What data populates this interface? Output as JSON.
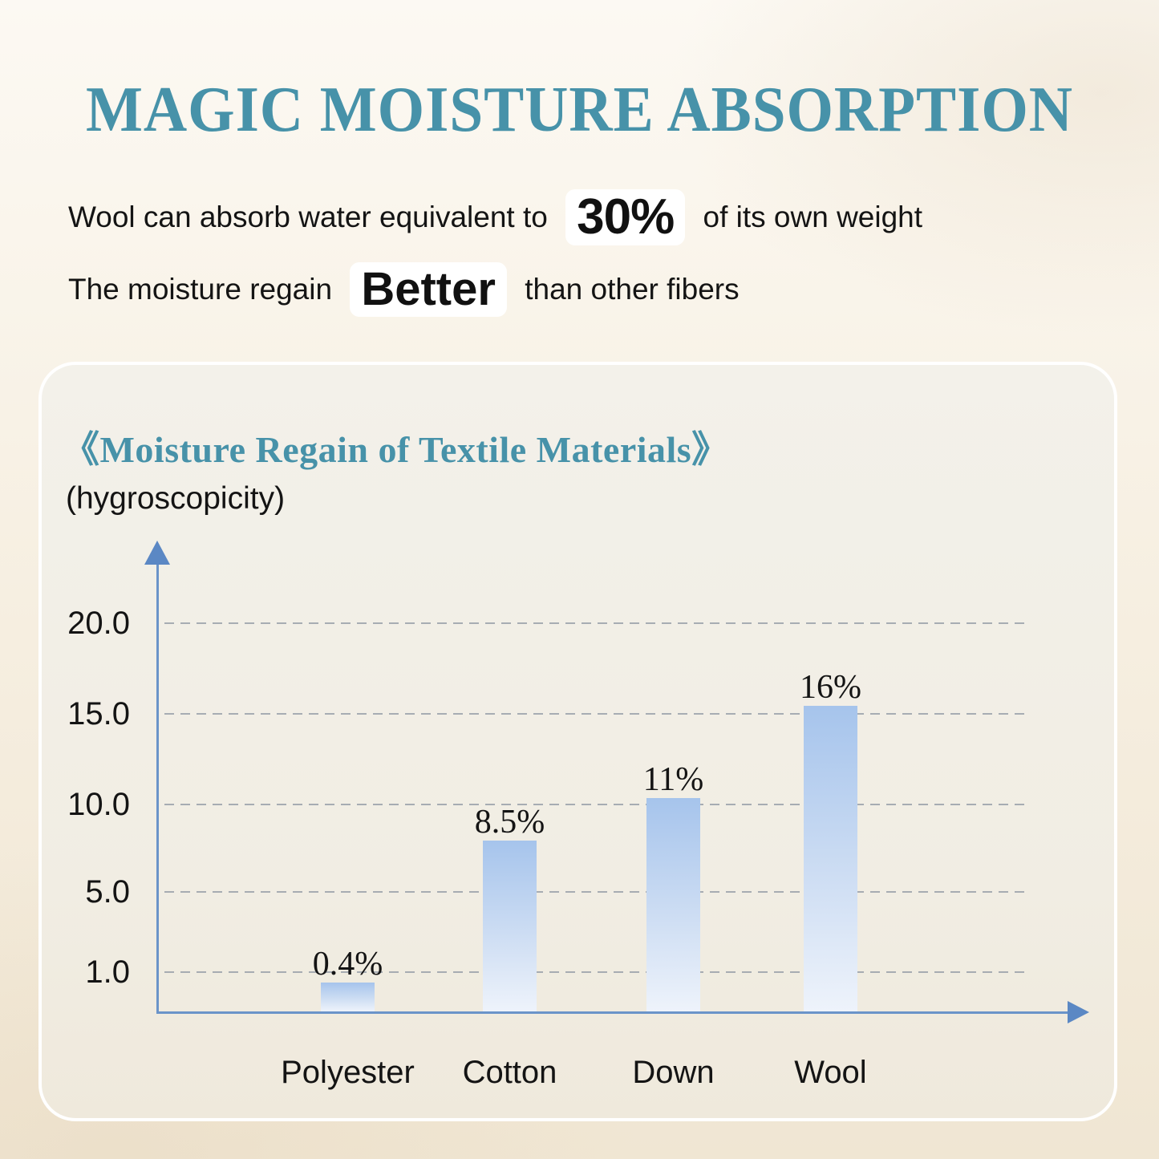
{
  "header": {
    "title": "MAGIC MOISTURE ABSORPTION",
    "line1": {
      "pre": "Wool can absorb water equivalent to ",
      "highlight": "30%",
      "post": " of its own weight"
    },
    "line2": {
      "pre": "The moisture regain ",
      "highlight": "Better",
      "post": " than other fibers"
    }
  },
  "card": {
    "chart_title": "《Moisture Regain of Textile Materials》",
    "chart_subtitle": "(hygroscopicity)"
  },
  "chart_data": {
    "type": "bar",
    "title": "《Moisture Regain of Textile Materials》",
    "subtitle": "(hygroscopicity)",
    "categories": [
      "Polyester",
      "Cotton",
      "Down",
      "Wool"
    ],
    "values": [
      0.4,
      8.5,
      11,
      16
    ],
    "value_labels": [
      "0.4%",
      "8.5%",
      "11%",
      "16%"
    ],
    "y_ticks": [
      "20.0",
      "15.0",
      "10.0",
      "5.0",
      "1.0"
    ],
    "y_tick_values": [
      20,
      15,
      10,
      5,
      1
    ],
    "ylim": [
      0,
      24
    ],
    "xlabel": "",
    "ylabel": "",
    "grid": "horizontal-dashed",
    "legend": "none"
  },
  "colors": {
    "title_teal": "#4792a9",
    "axis_blue": "#6b94c9",
    "arrow_blue": "#5b88c4",
    "gridline_gray": "#9aa1aa",
    "bar_gradient_top": "#a6c4ec",
    "bar_gradient_bottom": "#eef3fb",
    "highlight_pill": "#ffffff",
    "text_black": "#141414",
    "background_cream": "#f6efe2",
    "card_background": "#f1ede3"
  }
}
